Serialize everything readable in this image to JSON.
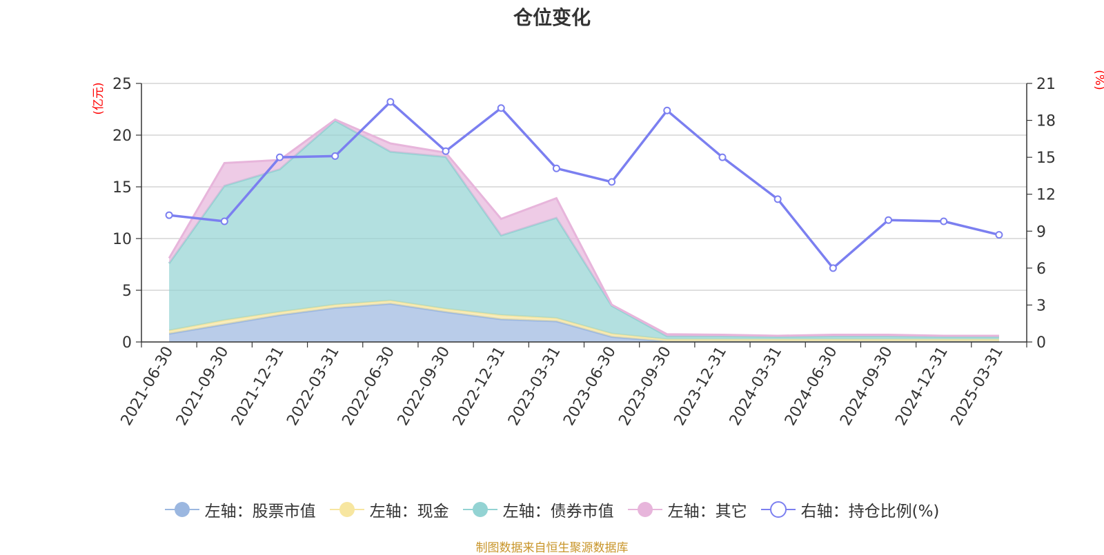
{
  "chart_data": {
    "type": "area",
    "title": "仓位变化",
    "left_axis_unit": "(亿元)",
    "right_axis_unit": "(%)",
    "left_ylim": [
      0,
      25
    ],
    "left_yticks": [
      "0",
      "5",
      "10",
      "15",
      "20",
      "25"
    ],
    "right_ylim": [
      0,
      21
    ],
    "right_yticks": [
      "0",
      "3",
      "6",
      "9",
      "12",
      "15",
      "18",
      "21"
    ],
    "grid": true,
    "legend_placement": "bottom",
    "categories": [
      "2021-06-30",
      "2021-09-30",
      "2021-12-31",
      "2022-03-31",
      "2022-06-30",
      "2022-09-30",
      "2022-12-31",
      "2023-03-31",
      "2023-06-30",
      "2023-09-30",
      "2023-12-31",
      "2024-03-31",
      "2024-06-30",
      "2024-09-30",
      "2024-12-31",
      "2025-03-31"
    ],
    "series": [
      {
        "name": "左轴：股票市值",
        "type": "stacked-area",
        "axis": "left",
        "color": "#9bb7e0",
        "values": [
          0.8,
          1.7,
          2.6,
          3.3,
          3.7,
          2.9,
          2.2,
          2.0,
          0.5,
          0.05,
          0.05,
          0.05,
          0.05,
          0.05,
          0.05,
          0.05
        ]
      },
      {
        "name": "左轴：现金",
        "type": "stacked-area",
        "axis": "left",
        "color": "#f7e6a0",
        "values": [
          0.3,
          0.4,
          0.3,
          0.3,
          0.3,
          0.3,
          0.4,
          0.3,
          0.3,
          0.2,
          0.2,
          0.2,
          0.2,
          0.2,
          0.2,
          0.2
        ]
      },
      {
        "name": "左轴：债券市值",
        "type": "stacked-area",
        "axis": "left",
        "color": "#93d3d3",
        "values": [
          6.5,
          13.0,
          13.8,
          17.8,
          14.4,
          14.7,
          7.7,
          9.7,
          2.7,
          0.3,
          0.3,
          0.25,
          0.3,
          0.3,
          0.25,
          0.25
        ]
      },
      {
        "name": "左轴：其它",
        "type": "stacked-area",
        "axis": "left",
        "color": "#e7b5db",
        "values": [
          0.5,
          2.2,
          0.9,
          0.1,
          0.8,
          0.4,
          1.6,
          1.9,
          0.1,
          0.2,
          0.15,
          0.1,
          0.15,
          0.15,
          0.1,
          0.1
        ]
      },
      {
        "name": "右轴：持仓比例(%)",
        "type": "line",
        "axis": "right",
        "color": "#7b7ff0",
        "values": [
          10.3,
          9.8,
          15.0,
          15.1,
          19.5,
          15.5,
          19.0,
          14.1,
          13.0,
          18.8,
          15.0,
          11.6,
          6.0,
          9.9,
          9.8,
          8.7
        ]
      }
    ],
    "source_note": "制图数据来自恒生聚源数据库"
  }
}
